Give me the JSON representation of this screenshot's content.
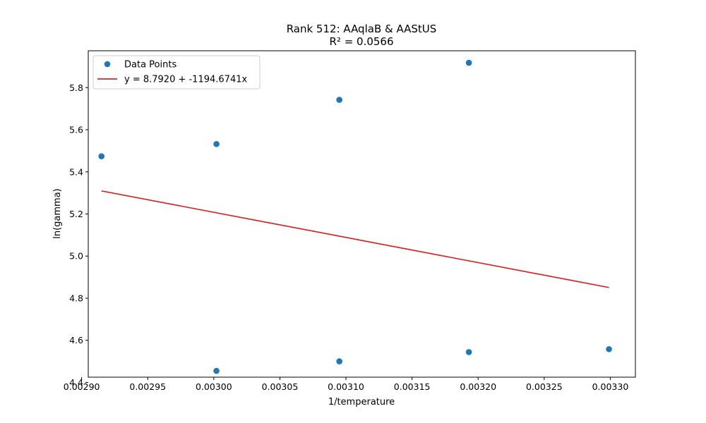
{
  "chart_data": {
    "type": "scatter",
    "title": "Rank 512: AAqlaB & AAStUS",
    "subtitle": "R² = 0.0566",
    "xlabel": "1/temperature",
    "ylabel": "ln(gamma)",
    "xlim": [
      0.002905,
      0.003319
    ],
    "ylim": [
      4.425,
      5.975
    ],
    "x_ticks": [
      0.0029,
      0.00295,
      0.003,
      0.00305,
      0.0031,
      0.00315,
      0.0032,
      0.00325,
      0.0033
    ],
    "x_tick_labels": [
      "0.00290",
      "0.00295",
      "0.00300",
      "0.00305",
      "0.00310",
      "0.00315",
      "0.00320",
      "0.00325",
      "0.00330"
    ],
    "y_ticks": [
      4.4,
      4.6,
      4.8,
      5.0,
      5.2,
      5.4,
      5.6,
      5.8
    ],
    "y_tick_labels": [
      "4.4",
      "4.6",
      "4.8",
      "5.0",
      "5.2",
      "5.4",
      "5.6",
      "5.8"
    ],
    "grid": false,
    "legend_position": "top-left",
    "series": [
      {
        "name": "Data Points",
        "kind": "scatter",
        "color": "#1f77b4",
        "x": [
          0.002915,
          0.003002,
          0.003002,
          0.003095,
          0.003095,
          0.003193,
          0.003193,
          0.003299
        ],
        "y": [
          5.474,
          5.532,
          4.455,
          5.742,
          4.5,
          5.918,
          4.544,
          4.558
        ]
      },
      {
        "name": "y = 8.7920 + -1194.6741x",
        "kind": "line",
        "color": "#d62728",
        "intercept": 8.792,
        "slope": -1194.6741,
        "x_range": [
          0.002915,
          0.003299
        ]
      }
    ]
  }
}
